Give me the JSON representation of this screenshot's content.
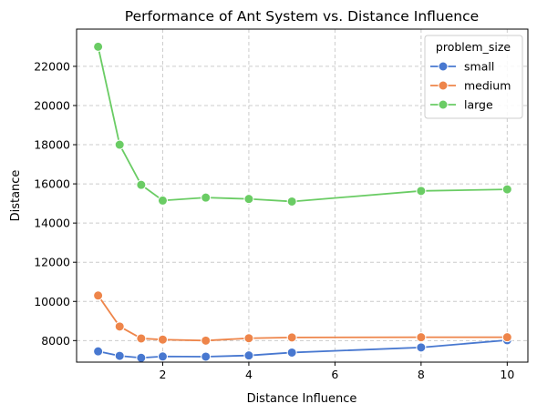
{
  "chart_data": {
    "type": "line",
    "title": "Performance of Ant System vs. Distance Influence",
    "xlabel": "Distance Influence",
    "ylabel": "Distance",
    "xlim": [
      0.0,
      10.48
    ],
    "ylim": [
      6900,
      23900
    ],
    "xticks": [
      2,
      4,
      6,
      8,
      10
    ],
    "yticks": [
      8000,
      10000,
      12000,
      14000,
      16000,
      18000,
      20000,
      22000
    ],
    "grid": true,
    "legend": {
      "title": "problem_size",
      "position": "top-right"
    },
    "x": [
      0.5,
      1,
      1.5,
      2,
      3,
      4,
      5,
      8,
      10
    ],
    "series": [
      {
        "name": "small",
        "color": "#4878d0",
        "values": [
          7450,
          7220,
          7120,
          7190,
          7180,
          7240,
          7390,
          7650,
          8020
        ]
      },
      {
        "name": "medium",
        "color": "#ee854a",
        "values": [
          10300,
          8720,
          8110,
          8050,
          8000,
          8120,
          8160,
          8170,
          8170
        ]
      },
      {
        "name": "large",
        "color": "#6acc64",
        "values": [
          23000,
          18000,
          15950,
          15150,
          15300,
          15230,
          15100,
          15640,
          15720
        ]
      }
    ]
  }
}
